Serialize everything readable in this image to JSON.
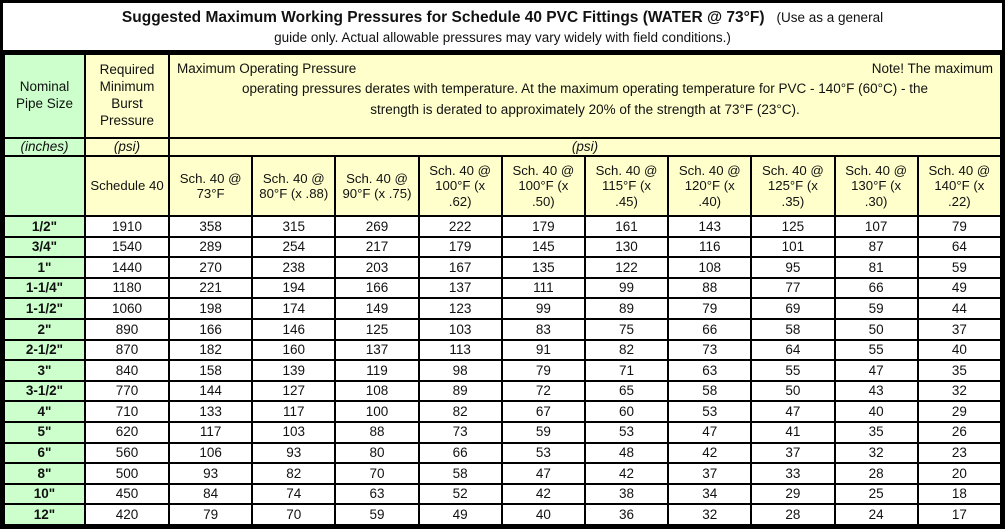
{
  "title": {
    "main": "Suggested Maximum Working Pressures for Schedule 40 PVC Fittings (WATER @ 73°F)",
    "suffix": "(Use as a general",
    "line2": "guide only. Actual allowable pressures may vary widely with field conditions.)"
  },
  "colors": {
    "pipe_size_column_green": "#ccffcc",
    "header_yellow": "#ffffcc",
    "border": "#000000",
    "text": "#111111",
    "data_cell_background": "#ffffff"
  },
  "header": {
    "col1_label": "Nominal Pipe Size",
    "col2_label": "Required Minimum Burst Pressure",
    "note": {
      "left": "Maximum Operating Pressure",
      "right": "Note! The maximum",
      "line2": "operating pressures derates with temperature. At the maximum operating temperature for PVC - 140°F (60°C) - the",
      "line3": "strength is derated to approximately 20% of the strength at 73°F (23°C)."
    },
    "units_row": {
      "col1": "(inches)",
      "col2": "(psi)",
      "span": "(psi)"
    },
    "schedule_label": "Schedule 40",
    "temp_columns": [
      "Sch. 40 @ 73°F",
      "Sch. 40 @ 80°F (x .88)",
      "Sch. 40 @ 90°F (x .75)",
      "Sch. 40 @ 100°F (x .62)",
      "Sch. 40 @ 100°F (x .50)",
      "Sch. 40 @ 115°F (x .45)",
      "Sch. 40 @ 120°F (x .40)",
      "Sch. 40 @ 125°F (x .35)",
      "Sch. 40 @ 130°F (x .30)",
      "Sch. 40 @ 140°F (x .22)"
    ]
  },
  "chart_data": {
    "type": "table",
    "columns": [
      "Nominal Pipe Size (inches)",
      "Required Minimum Burst Pressure (psi) Schedule 40",
      "Sch. 40 @ 73°F",
      "Sch. 40 @ 80°F (x .88)",
      "Sch. 40 @ 90°F (x .75)",
      "Sch. 40 @ 100°F (x .62)",
      "Sch. 40 @ 100°F (x .50)",
      "Sch. 40 @ 115°F (x .45)",
      "Sch. 40 @ 120°F (x .40)",
      "Sch. 40 @ 125°F (x .35)",
      "Sch. 40 @ 130°F (x .30)",
      "Sch. 40 @ 140°F (x .22)"
    ],
    "rows": [
      {
        "size": "1/2\"",
        "burst": 1910,
        "bold_73f": true,
        "values": [
          358,
          315,
          269,
          222,
          179,
          161,
          143,
          125,
          107,
          79
        ]
      },
      {
        "size": "3/4\"",
        "burst": 1540,
        "bold_73f": true,
        "values": [
          289,
          254,
          217,
          179,
          145,
          130,
          116,
          101,
          87,
          64
        ]
      },
      {
        "size": "1\"",
        "burst": 1440,
        "bold_73f": true,
        "values": [
          270,
          238,
          203,
          167,
          135,
          122,
          108,
          95,
          81,
          59
        ]
      },
      {
        "size": "1-1/4\"",
        "burst": 1180,
        "bold_73f": true,
        "values": [
          221,
          194,
          166,
          137,
          111,
          99,
          88,
          77,
          66,
          49
        ]
      },
      {
        "size": "1-1/2\"",
        "burst": 1060,
        "bold_73f": true,
        "values": [
          198,
          174,
          149,
          123,
          99,
          89,
          79,
          69,
          59,
          44
        ]
      },
      {
        "size": "2\"",
        "burst": 890,
        "bold_73f": true,
        "values": [
          166,
          146,
          125,
          103,
          83,
          75,
          66,
          58,
          50,
          37
        ]
      },
      {
        "size": "2-1/2\"",
        "burst": 870,
        "bold_73f": true,
        "values": [
          182,
          160,
          137,
          113,
          91,
          82,
          73,
          64,
          55,
          40
        ]
      },
      {
        "size": "3\"",
        "burst": 840,
        "bold_73f": true,
        "values": [
          158,
          139,
          119,
          98,
          79,
          71,
          63,
          55,
          47,
          35
        ]
      },
      {
        "size": "3-1/2\"",
        "burst": 770,
        "bold_73f": true,
        "values": [
          144,
          127,
          108,
          89,
          72,
          65,
          58,
          50,
          43,
          32
        ]
      },
      {
        "size": "4\"",
        "burst": 710,
        "bold_73f": true,
        "values": [
          133,
          117,
          100,
          82,
          67,
          60,
          53,
          47,
          40,
          29
        ]
      },
      {
        "size": "5\"",
        "burst": 620,
        "bold_73f": true,
        "values": [
          117,
          103,
          88,
          73,
          59,
          53,
          47,
          41,
          35,
          26
        ]
      },
      {
        "size": "6\"",
        "burst": 560,
        "bold_73f": true,
        "values": [
          106,
          93,
          80,
          66,
          53,
          48,
          42,
          37,
          32,
          23
        ]
      },
      {
        "size": "8\"",
        "burst": 500,
        "bold_73f": false,
        "values": [
          93,
          82,
          70,
          58,
          47,
          42,
          37,
          33,
          28,
          20
        ]
      },
      {
        "size": "10\"",
        "burst": 450,
        "bold_73f": false,
        "values": [
          84,
          74,
          63,
          52,
          42,
          38,
          34,
          29,
          25,
          18
        ]
      },
      {
        "size": "12\"",
        "burst": 420,
        "bold_73f": false,
        "values": [
          79,
          70,
          59,
          49,
          40,
          36,
          32,
          28,
          24,
          17
        ]
      }
    ]
  }
}
